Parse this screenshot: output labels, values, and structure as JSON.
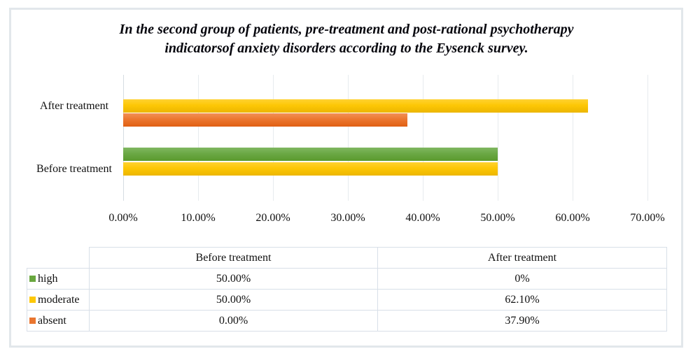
{
  "title": {
    "line1": "In the second group of patients, pre-treatment and post-rational psychotherapy",
    "line2": "indicatorsof anxiety disorders according to the Eysenck survey."
  },
  "chart_data": {
    "type": "bar",
    "orientation": "horizontal",
    "categories": [
      "After treatment",
      "Before treatment"
    ],
    "series": [
      {
        "name": "high",
        "color": "#69A73F",
        "values": [
          0,
          50.0
        ]
      },
      {
        "name": "moderate",
        "color": "#FDC806",
        "values": [
          62.1,
          50.0
        ]
      },
      {
        "name": "absent",
        "color": "#E9752F",
        "values": [
          37.9,
          0
        ]
      }
    ],
    "x_ticks": [
      "0.00%",
      "10.00%",
      "20.00%",
      "30.00%",
      "40.00%",
      "50.00%",
      "60.00%",
      "70.00%"
    ],
    "xlim": [
      0,
      70
    ],
    "grid": true,
    "legend_position": "table-below-chart"
  },
  "table": {
    "col_headers": [
      "Before treatment",
      "After treatment"
    ],
    "rows": [
      {
        "label": "high",
        "swatch": "#69A73F",
        "before": "50.00%",
        "after": "0%"
      },
      {
        "label": "moderate",
        "swatch": "#FDC806",
        "before": "50.00%",
        "after": "62.10%"
      },
      {
        "label": "absent",
        "swatch": "#E9752F",
        "before": "0.00%",
        "after": "37.90%"
      }
    ]
  }
}
